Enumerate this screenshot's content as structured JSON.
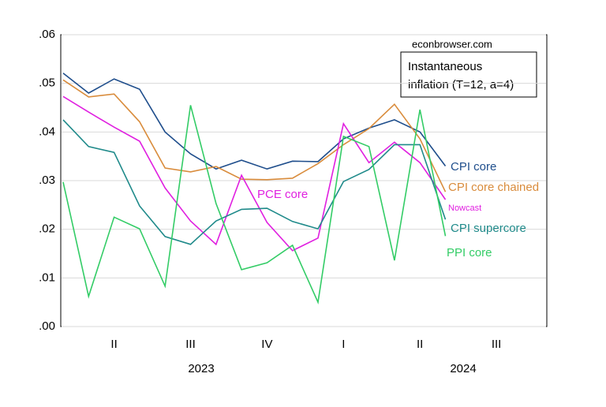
{
  "chart_data": {
    "type": "line",
    "source": "econbrowser.com",
    "box_text": [
      "Instantaneous",
      "inflation (T=12, a=4)"
    ],
    "annotation": "Nowcast",
    "categories": [
      null,
      null,
      "II",
      null,
      null,
      "III",
      null,
      null,
      "IV",
      null,
      null,
      "I",
      null,
      null,
      "II",
      null,
      null,
      "III",
      null,
      null
    ],
    "year_labels": [
      "2023",
      "2024"
    ],
    "ylim": [
      0,
      0.06
    ],
    "yticks": [
      {
        "value": 0,
        "label": ".00"
      },
      {
        "value": 0.01,
        "label": ".01"
      },
      {
        "value": 0.02,
        "label": ".02"
      },
      {
        "value": 0.03,
        "label": ".03"
      },
      {
        "value": 0.04,
        "label": ".04"
      },
      {
        "value": 0.05,
        "label": ".05"
      },
      {
        "value": 0.06,
        "label": ".06"
      }
    ],
    "grid": true,
    "series": [
      {
        "name": "CPI core",
        "color": "#1f4e8c",
        "values": [
          0.0521,
          0.048,
          0.0509,
          0.0488,
          0.04,
          0.0355,
          0.0324,
          0.0342,
          0.0324,
          0.034,
          0.0339,
          0.0386,
          0.0408,
          0.0425,
          0.04,
          0.033,
          null,
          null,
          null,
          null
        ]
      },
      {
        "name": "CPI core chained",
        "color": "#d98c3c",
        "values": [
          0.0507,
          0.0472,
          0.0478,
          0.0421,
          0.0326,
          0.0318,
          0.0329,
          0.0303,
          0.0302,
          0.0305,
          0.0335,
          0.0374,
          0.0407,
          0.0457,
          0.0386,
          0.0277,
          null,
          null,
          null,
          null
        ]
      },
      {
        "name": "PCE core",
        "color": "#e020e0",
        "values": [
          0.0473,
          0.0441,
          0.041,
          0.0381,
          0.0285,
          0.0217,
          0.0169,
          0.0311,
          0.0214,
          0.0156,
          0.0182,
          0.0417,
          0.0337,
          0.0379,
          0.0337,
          0.0261,
          null,
          null,
          null,
          null
        ]
      },
      {
        "name": "CPI supercore",
        "color": "#1f8a8a",
        "values": [
          0.0425,
          0.037,
          0.0358,
          0.0248,
          0.0185,
          0.0169,
          0.0217,
          0.0241,
          0.0243,
          0.0216,
          0.0201,
          0.0298,
          0.0323,
          0.0374,
          0.0374,
          0.022,
          null,
          null,
          null,
          null
        ]
      },
      {
        "name": "PPI core",
        "color": "#33cc66",
        "values": [
          0.0297,
          0.0062,
          0.0225,
          0.0201,
          0.0083,
          0.0455,
          0.0253,
          0.0117,
          0.0131,
          0.0167,
          0.005,
          0.0391,
          0.037,
          0.0136,
          0.0446,
          0.0186,
          null,
          null,
          null,
          null
        ]
      }
    ]
  }
}
